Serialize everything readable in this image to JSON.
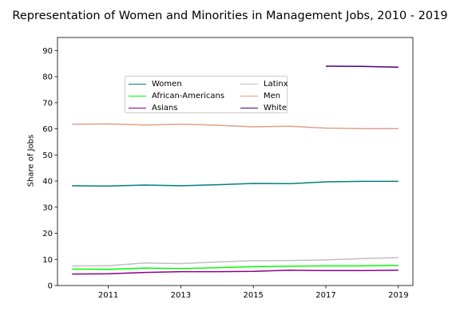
{
  "chart_data": {
    "type": "line",
    "title": "Representation of Women and Minorities in Management Jobs, 2010 - 2019",
    "xlabel": "",
    "ylabel": "Share of Jobs",
    "xlim": [
      2009.6,
      2019.4
    ],
    "ylim": [
      0,
      95
    ],
    "xticks": [
      2011,
      2013,
      2015,
      2017,
      2019
    ],
    "yticks": [
      0,
      10,
      20,
      30,
      40,
      50,
      60,
      70,
      80,
      90
    ],
    "grid": false,
    "legend_placement": "upper-center",
    "series": [
      {
        "name": "Women",
        "color": "#008080",
        "x": [
          2010,
          2011,
          2012,
          2013,
          2014,
          2015,
          2016,
          2017,
          2018,
          2019
        ],
        "values": [
          38.2,
          38.1,
          38.5,
          38.2,
          38.6,
          39.1,
          39.0,
          39.7,
          39.9,
          39.9
        ]
      },
      {
        "name": "African-Americans",
        "color": "#00ff00",
        "x": [
          2010,
          2011,
          2012,
          2013,
          2014,
          2015,
          2016,
          2017,
          2018,
          2019
        ],
        "values": [
          6.3,
          6.2,
          6.7,
          6.5,
          6.8,
          7.2,
          7.4,
          7.5,
          7.5,
          7.7
        ]
      },
      {
        "name": "Asians",
        "color": "#8b008b",
        "x": [
          2010,
          2011,
          2012,
          2013,
          2014,
          2015,
          2016,
          2017,
          2018,
          2019
        ],
        "values": [
          4.4,
          4.5,
          5.0,
          5.3,
          5.3,
          5.4,
          5.9,
          5.7,
          5.7,
          5.9
        ]
      },
      {
        "name": "Latinx",
        "color": "#c0c0c0",
        "x": [
          2010,
          2011,
          2012,
          2013,
          2014,
          2015,
          2016,
          2017,
          2018,
          2019
        ],
        "values": [
          7.5,
          7.6,
          8.6,
          8.4,
          9.0,
          9.5,
          9.6,
          9.8,
          10.3,
          10.7
        ]
      },
      {
        "name": "Men",
        "color": "#e0a08a",
        "x": [
          2010,
          2011,
          2012,
          2013,
          2014,
          2015,
          2016,
          2017,
          2018,
          2019
        ],
        "values": [
          61.8,
          61.9,
          61.5,
          61.8,
          61.4,
          60.8,
          61.0,
          60.3,
          60.1,
          60.1
        ]
      },
      {
        "name": "White",
        "color": "#4b0082",
        "x": [
          2017,
          2018,
          2019
        ],
        "values": [
          84.0,
          83.9,
          83.6
        ]
      }
    ]
  }
}
